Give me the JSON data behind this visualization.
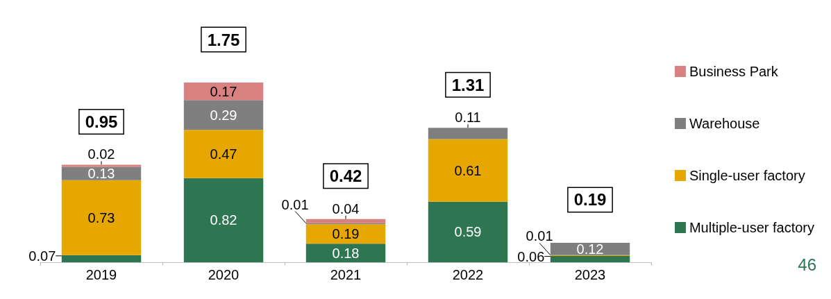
{
  "chart_data": {
    "type": "bar",
    "stacked": true,
    "categories": [
      "2019",
      "2020",
      "2021",
      "2022",
      "2023"
    ],
    "series": [
      {
        "name": "Multiple-user factory",
        "color": "#2e7552",
        "values": [
          0.07,
          0.82,
          0.18,
          0.59,
          0.06
        ]
      },
      {
        "name": "Single-user factory",
        "color": "#e6a800",
        "values": [
          0.73,
          0.47,
          0.19,
          0.61,
          0.01
        ]
      },
      {
        "name": "Warehouse",
        "color": "#7f7f7f",
        "values": [
          0.13,
          0.29,
          0.01,
          0.11,
          0.12
        ]
      },
      {
        "name": "Business Park",
        "color": "#d98080",
        "values": [
          0.02,
          0.17,
          0.04,
          null,
          null
        ]
      }
    ],
    "totals": [
      "0.95",
      "1.75",
      "0.42",
      "1.31",
      "0.19"
    ],
    "data_labels": true,
    "legend": "right",
    "annotations": [
      "46"
    ]
  }
}
